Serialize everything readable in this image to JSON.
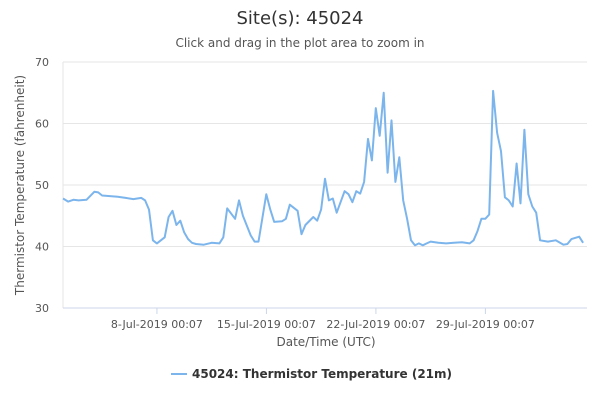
{
  "chart_data": {
    "type": "line",
    "title": "Site(s): 45024",
    "subtitle": "Click and drag in the plot area to zoom in",
    "xlabel": "Date/Time (UTC)",
    "ylabel": "Thermistor Temperature (fahrenheit)",
    "ylim": [
      30,
      70
    ],
    "yticks": [
      30,
      40,
      50,
      60,
      70
    ],
    "xlim": [
      "2019-07-02 00:00",
      "2019-08-04 12:00"
    ],
    "xticks": [
      {
        "label": "8-Jul-2019 00:07",
        "value": "2019-07-08 00:07"
      },
      {
        "label": "15-Jul-2019 00:07",
        "value": "2019-07-15 00:07"
      },
      {
        "label": "22-Jul-2019 00:07",
        "value": "2019-07-22 00:07"
      },
      {
        "label": "29-Jul-2019 00:07",
        "value": "2019-07-29 00:07"
      }
    ],
    "grid": {
      "horizontal": true,
      "vertical": false
    },
    "legend_position": "bottom-center",
    "series": [
      {
        "name": "45024: Thermistor Temperature (21m)",
        "color": "#7cb5ec",
        "x": [
          "2019-07-02 00:00",
          "2019-07-02 08:00",
          "2019-07-02 16:00",
          "2019-07-03 00:00",
          "2019-07-03 12:00",
          "2019-07-04 00:00",
          "2019-07-04 06:00",
          "2019-07-04 12:00",
          "2019-07-05 00:00",
          "2019-07-05 12:00",
          "2019-07-06 00:00",
          "2019-07-06 12:00",
          "2019-07-07 00:00",
          "2019-07-07 06:00",
          "2019-07-07 12:00",
          "2019-07-07 18:00",
          "2019-07-08 00:00",
          "2019-07-08 12:00",
          "2019-07-08 18:00",
          "2019-07-09 00:00",
          "2019-07-09 06:00",
          "2019-07-09 12:00",
          "2019-07-09 18:00",
          "2019-07-10 00:00",
          "2019-07-10 06:00",
          "2019-07-10 12:00",
          "2019-07-11 00:00",
          "2019-07-11 12:00",
          "2019-07-12 00:00",
          "2019-07-12 06:00",
          "2019-07-12 12:00",
          "2019-07-13 00:00",
          "2019-07-13 06:00",
          "2019-07-13 12:00",
          "2019-07-14 00:00",
          "2019-07-14 06:00",
          "2019-07-14 12:00",
          "2019-07-15 00:00",
          "2019-07-15 06:00",
          "2019-07-15 12:00",
          "2019-07-16 00:00",
          "2019-07-16 06:00",
          "2019-07-16 12:00",
          "2019-07-17 00:00",
          "2019-07-17 06:00",
          "2019-07-17 12:00",
          "2019-07-18 00:00",
          "2019-07-18 06:00",
          "2019-07-18 12:00",
          "2019-07-18 18:00",
          "2019-07-19 00:00",
          "2019-07-19 06:00",
          "2019-07-19 12:00",
          "2019-07-20 00:00",
          "2019-07-20 06:00",
          "2019-07-20 12:00",
          "2019-07-20 18:00",
          "2019-07-21 00:00",
          "2019-07-21 06:00",
          "2019-07-21 12:00",
          "2019-07-21 18:00",
          "2019-07-22 00:00",
          "2019-07-22 06:00",
          "2019-07-22 12:00",
          "2019-07-22 18:00",
          "2019-07-23 00:00",
          "2019-07-23 06:00",
          "2019-07-23 12:00",
          "2019-07-23 18:00",
          "2019-07-24 00:00",
          "2019-07-24 06:00",
          "2019-07-24 12:00",
          "2019-07-24 18:00",
          "2019-07-25 00:00",
          "2019-07-25 06:00",
          "2019-07-25 12:00",
          "2019-07-26 00:00",
          "2019-07-26 12:00",
          "2019-07-27 00:00",
          "2019-07-27 12:00",
          "2019-07-28 00:00",
          "2019-07-28 06:00",
          "2019-07-28 12:00",
          "2019-07-28 18:00",
          "2019-07-29 00:00",
          "2019-07-29 06:00",
          "2019-07-29 12:00",
          "2019-07-29 18:00",
          "2019-07-30 00:00",
          "2019-07-30 06:00",
          "2019-07-30 12:00",
          "2019-07-30 18:00",
          "2019-07-31 00:00",
          "2019-07-31 06:00",
          "2019-07-31 12:00",
          "2019-07-31 18:00",
          "2019-08-01 00:00",
          "2019-08-01 06:00",
          "2019-08-01 12:00",
          "2019-08-02 00:00",
          "2019-08-02 12:00",
          "2019-08-03 00:00",
          "2019-08-03 06:00",
          "2019-08-03 12:00",
          "2019-08-04 00:00",
          "2019-08-04 06:00"
        ],
        "y": [
          47.8,
          47.3,
          47.6,
          47.5,
          47.6,
          48.9,
          48.8,
          48.3,
          48.2,
          48.1,
          47.9,
          47.7,
          47.9,
          47.5,
          46.0,
          41.0,
          40.5,
          41.5,
          44.8,
          45.8,
          43.5,
          44.2,
          42.3,
          41.2,
          40.6,
          40.4,
          40.3,
          40.6,
          40.5,
          41.5,
          46.2,
          44.5,
          47.5,
          45.0,
          41.8,
          40.8,
          40.8,
          48.5,
          46.0,
          44.0,
          44.1,
          44.5,
          46.8,
          45.8,
          42.0,
          43.5,
          44.8,
          44.2,
          46.0,
          51.0,
          47.5,
          47.8,
          45.5,
          49.0,
          48.5,
          47.2,
          49.0,
          48.6,
          50.5,
          57.5,
          54.0,
          62.5,
          58.0,
          65.0,
          52.0,
          60.5,
          50.5,
          54.5,
          47.5,
          44.5,
          41.0,
          40.2,
          40.5,
          40.2,
          40.5,
          40.8,
          40.6,
          40.5,
          40.6,
          40.7,
          40.5,
          41.0,
          42.5,
          44.5,
          44.5,
          45.2,
          65.3,
          58.5,
          55.5,
          48.0,
          47.5,
          46.5,
          53.5,
          47.0,
          59.0,
          48.5,
          46.5,
          45.5,
          41.0,
          40.8,
          41.0,
          40.3,
          40.4,
          41.2,
          41.6,
          40.6
        ]
      }
    ]
  }
}
